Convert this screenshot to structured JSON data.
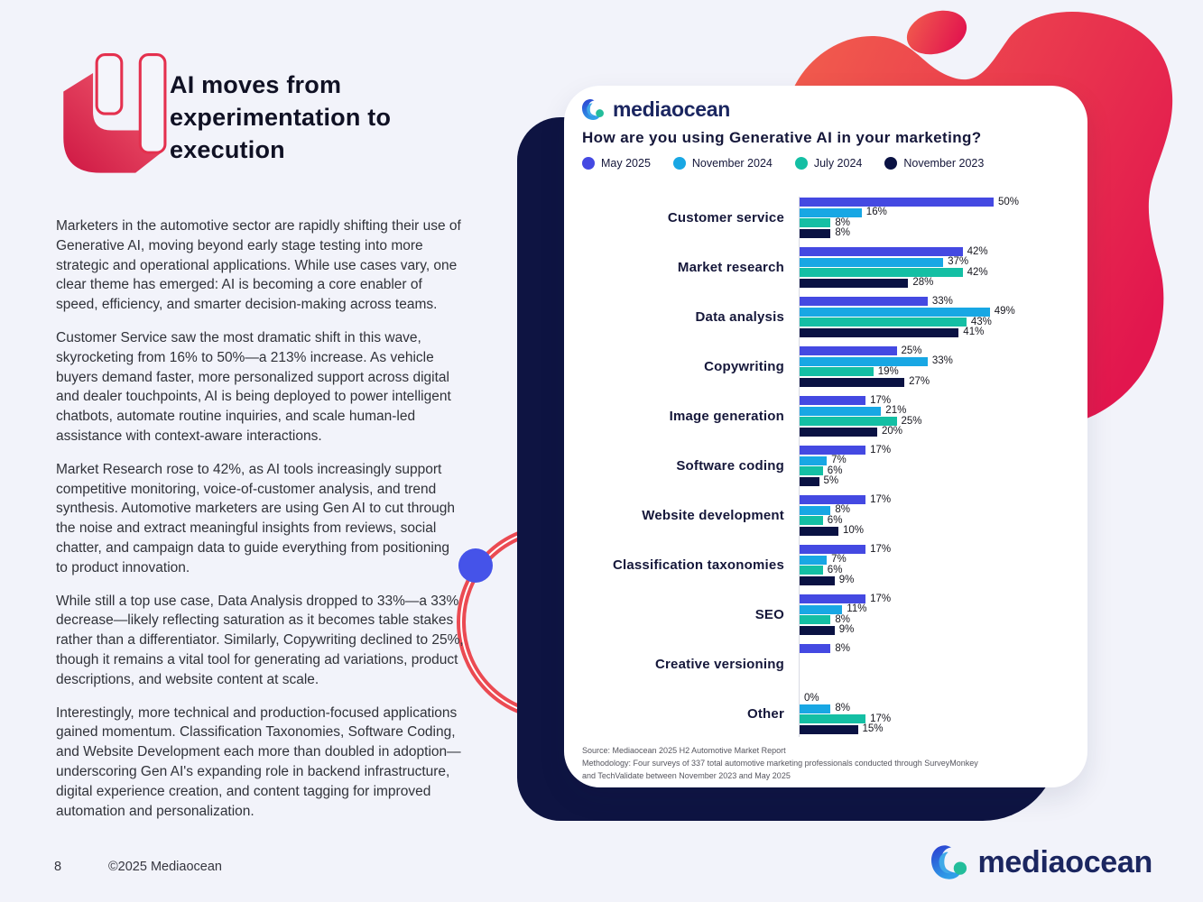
{
  "section": {
    "number_label": "4",
    "title": "AI moves from experimentation to execution"
  },
  "article": {
    "paragraphs": [
      "Marketers in the automotive sector are rapidly shifting their use of Generative AI, moving beyond early stage testing into more strategic and operational applications. While use cases vary, one clear theme has emerged: AI is becoming a core enabler of speed, efficiency, and smarter decision-making across teams.",
      "Customer Service saw the most dramatic shift in this wave, skyrocketing from 16% to 50%—a 213% increase. As vehicle buyers demand faster, more personalized support across digital and dealer touchpoints, AI is being deployed to power intelligent chatbots, automate routine inquiries, and scale human-led assistance with context-aware interactions.",
      "Market Research rose to 42%, as AI tools increasingly support competitive monitoring, voice-of-customer analysis, and trend synthesis. Automotive marketers are using Gen AI to cut through the noise and extract meaningful insights from reviews, social chatter, and campaign data to guide everything from positioning to product innovation.",
      "While still a top use case, Data Analysis dropped to 33%—a 33% decrease—likely reflecting saturation as it becomes table stakes rather than a differentiator. Similarly, Copywriting declined to 25%, though it remains a vital tool for generating ad variations, product descriptions, and website content at scale.",
      "Interestingly, more technical and production-focused applications gained momentum. Classification Taxonomies, Software Coding, and Website Development each more than doubled in adoption—underscoring Gen AI's expanding role in backend infrastructure, digital experience creation, and content tagging for improved automation and personalization."
    ]
  },
  "card": {
    "logo_text": "mediaocean",
    "title": "How are you using Generative AI in your marketing?",
    "source": [
      "Source: Mediaocean 2025 H2 Automotive Market Report",
      "Methodology: Four surveys of 337 total automotive marketing professionals conducted through SurveyMonkey",
      "and TechValidate between November 2023 and May 2025"
    ]
  },
  "chart_data": {
    "type": "bar",
    "orientation": "horizontal",
    "title": "How are you using Generative AI in your marketing?",
    "value_suffix": "%",
    "xlim": [
      0,
      55
    ],
    "legend_position": "top",
    "categories": [
      "Customer service",
      "Market research",
      "Data analysis",
      "Copywriting",
      "Image generation",
      "Software coding",
      "Website development",
      "Classification taxonomies",
      "SEO",
      "Creative versioning",
      "Other"
    ],
    "series": [
      {
        "name": "May 2025",
        "color": "#4449E2",
        "values": [
          50,
          42,
          33,
          25,
          17,
          17,
          17,
          17,
          17,
          8,
          0
        ]
      },
      {
        "name": "November 2024",
        "color": "#18A7E4",
        "values": [
          16,
          37,
          49,
          33,
          21,
          7,
          8,
          7,
          11,
          null,
          8
        ]
      },
      {
        "name": "July 2024",
        "color": "#14BFA4",
        "values": [
          8,
          42,
          43,
          19,
          25,
          6,
          6,
          6,
          8,
          null,
          17
        ]
      },
      {
        "name": "November 2023",
        "color": "#0A1243",
        "values": [
          8,
          28,
          41,
          27,
          20,
          5,
          10,
          9,
          9,
          null,
          15
        ]
      }
    ]
  },
  "footer": {
    "page_number": "8",
    "copyright": "©2025 Mediaocean",
    "logo_text": "mediaocean"
  },
  "colors": {
    "accent_red": "#E8204B",
    "navy_panel": "#0E1442",
    "blue_dot": "#4553E9",
    "page_background": "#F2F3FA"
  }
}
